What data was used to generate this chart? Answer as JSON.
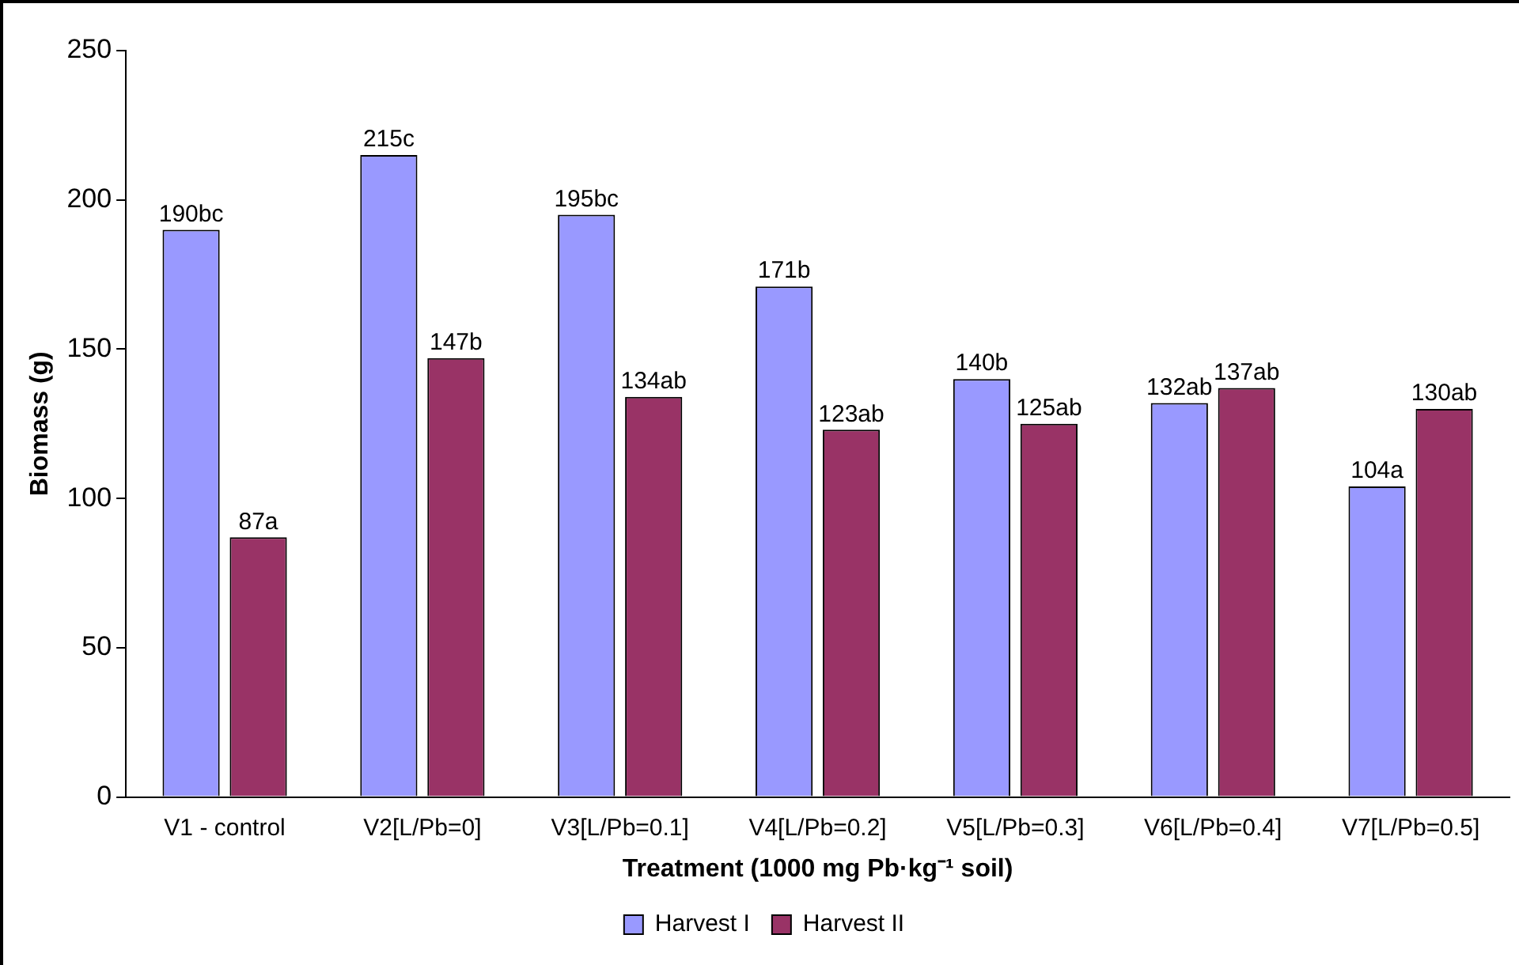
{
  "chart_data": {
    "type": "bar",
    "xlabel": "Treatment (1000 mg Pb·kg⁻¹ soil)",
    "ylabel": "Biomass (g)",
    "categories": [
      "V1 - control",
      "V2[L/Pb=0]",
      "V3[L/Pb=0.1]",
      "V4[L/Pb=0.2]",
      "V5[L/Pb=0.3]",
      "V6[L/Pb=0.4]",
      "V7[L/Pb=0.5]"
    ],
    "series": [
      {
        "name": "Harvest I",
        "color": "#9999ff",
        "values": [
          190,
          215,
          195,
          171,
          140,
          132,
          104
        ],
        "value_labels": [
          "190bc",
          "215c",
          "195bc",
          "171b",
          "140b",
          "132ab",
          "104a"
        ]
      },
      {
        "name": "Harvest II",
        "color": "#993366",
        "values": [
          87,
          147,
          134,
          123,
          125,
          137,
          130
        ],
        "value_labels": [
          "87a",
          "147b",
          "134ab",
          "123ab",
          "125ab",
          "137ab",
          "130ab"
        ]
      }
    ],
    "ylim": [
      0,
      250
    ],
    "yticks": [
      0,
      50,
      100,
      150,
      200,
      250
    ],
    "grid": false,
    "legend": "bottom"
  }
}
